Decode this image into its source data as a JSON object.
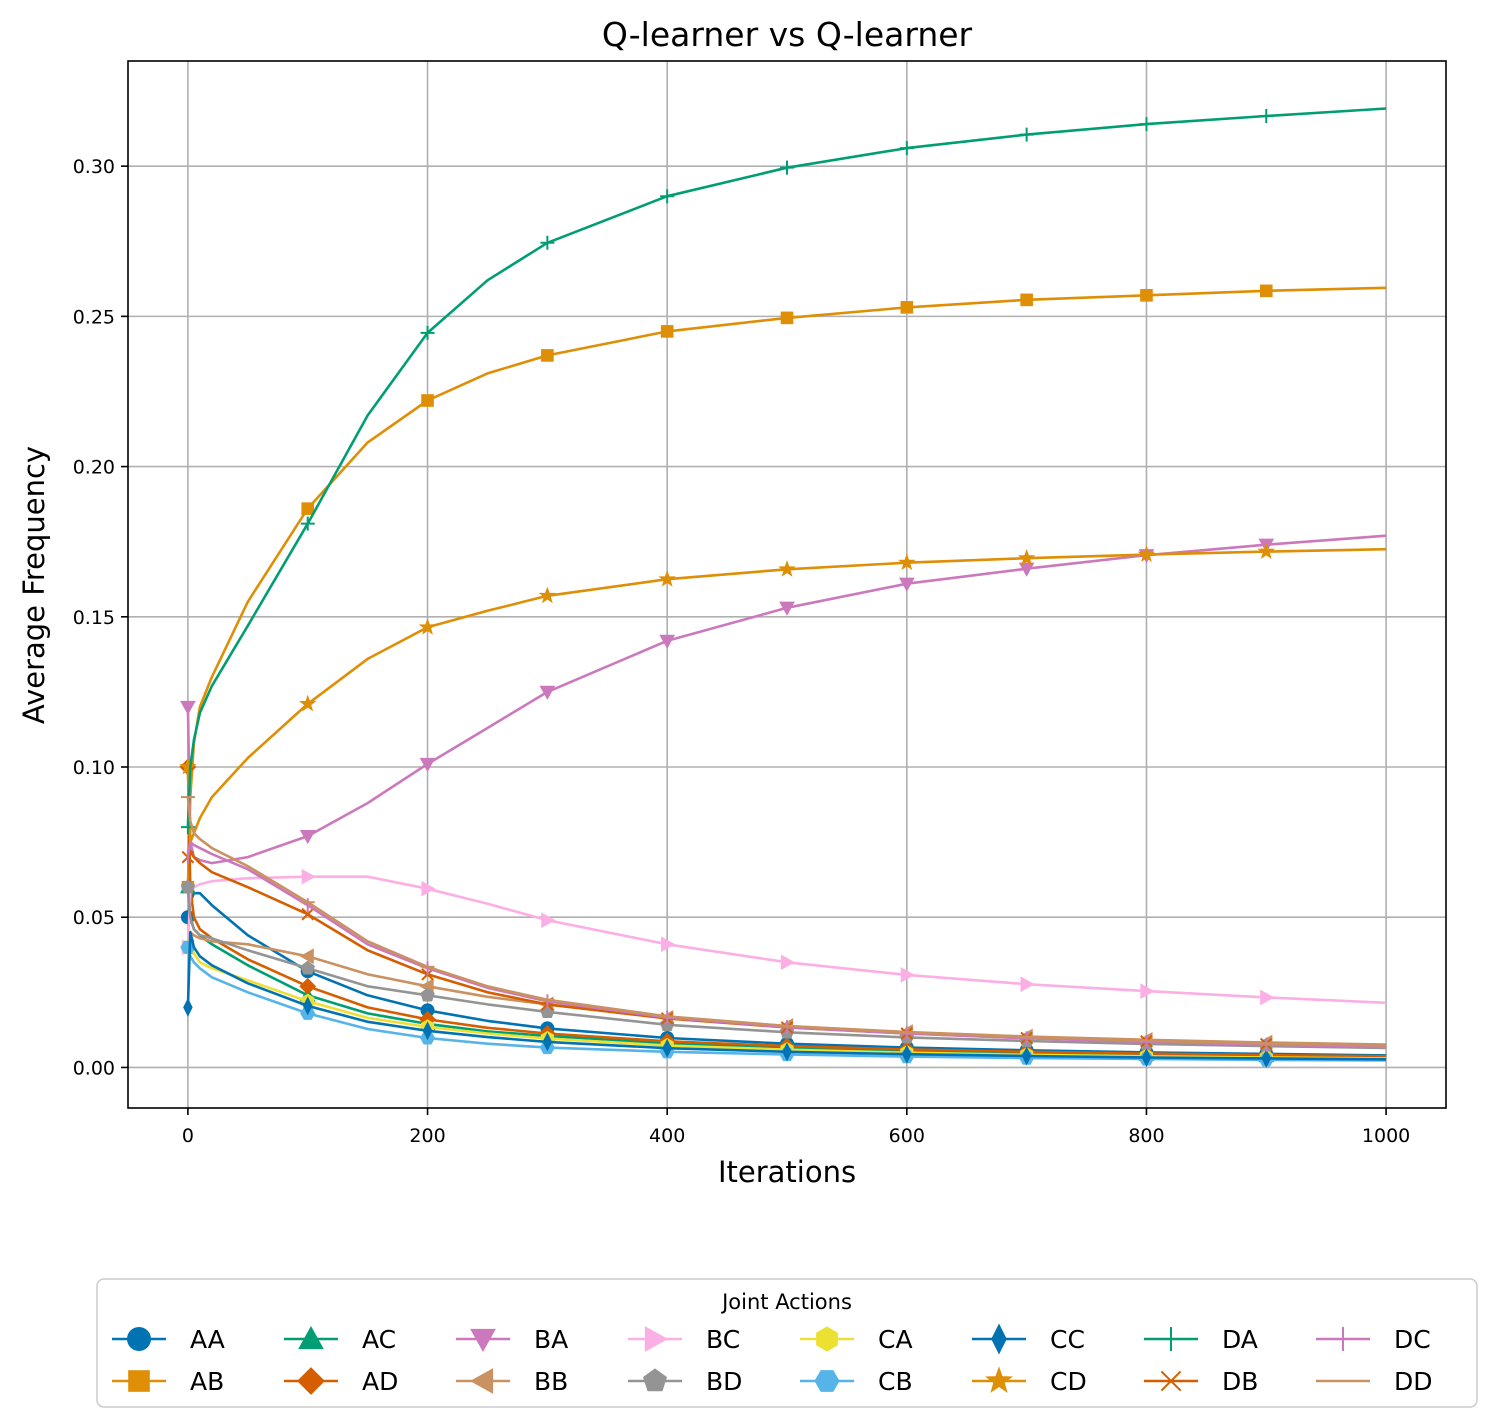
{
  "chart_data": {
    "type": "line",
    "title": "Q-learner vs Q-learner",
    "xlabel": "Iterations",
    "ylabel": "Average Frequency",
    "xlim": [
      -50,
      1050
    ],
    "ylim": [
      -0.0135,
      0.335
    ],
    "xticks": [
      0,
      200,
      400,
      600,
      800,
      1000
    ],
    "xtick_labels": [
      "0",
      "200",
      "400",
      "600",
      "800",
      "1000"
    ],
    "yticks": [
      0.0,
      0.05,
      0.1,
      0.15,
      0.2,
      0.25,
      0.3
    ],
    "ytick_labels": [
      "0.00",
      "0.05",
      "0.10",
      "0.15",
      "0.20",
      "0.25",
      "0.30"
    ],
    "grid": true,
    "legend": {
      "title": "Joint Actions",
      "placement": "bottom-center",
      "columns": 8
    },
    "x": [
      0,
      2,
      5,
      10,
      20,
      50,
      100,
      150,
      200,
      250,
      300,
      400,
      500,
      600,
      700,
      800,
      900,
      1000
    ],
    "series": [
      {
        "name": "AA",
        "color": "#0173b2",
        "marker": "circle",
        "values": [
          0.05,
          0.055,
          0.058,
          0.058,
          0.054,
          0.044,
          0.032,
          0.024,
          0.019,
          0.0155,
          0.013,
          0.0098,
          0.0079,
          0.0066,
          0.0057,
          0.005,
          0.0045,
          0.004
        ]
      },
      {
        "name": "AB",
        "color": "#de8f05",
        "marker": "square",
        "values": [
          0.06,
          0.09,
          0.108,
          0.12,
          0.13,
          0.155,
          0.186,
          0.208,
          0.222,
          0.231,
          0.237,
          0.245,
          0.2495,
          0.253,
          0.2555,
          0.257,
          0.2585,
          0.2595
        ]
      },
      {
        "name": "AC",
        "color": "#029e73",
        "marker": "triangle-up",
        "values": [
          0.06,
          0.05,
          0.046,
          0.044,
          0.041,
          0.034,
          0.024,
          0.018,
          0.0145,
          0.012,
          0.0105,
          0.008,
          0.0065,
          0.0055,
          0.0048,
          0.0042,
          0.0038,
          0.0034
        ]
      },
      {
        "name": "AD",
        "color": "#d55e00",
        "marker": "diamond",
        "values": [
          0.1,
          0.06,
          0.05,
          0.046,
          0.043,
          0.036,
          0.027,
          0.02,
          0.016,
          0.0132,
          0.0113,
          0.0087,
          0.0071,
          0.006,
          0.0052,
          0.0046,
          0.0041,
          0.0037
        ]
      },
      {
        "name": "BA",
        "color": "#cc78bc",
        "marker": "triangle-down",
        "values": [
          0.12,
          0.075,
          0.07,
          0.069,
          0.068,
          0.07,
          0.077,
          0.088,
          0.101,
          0.113,
          0.125,
          0.142,
          0.153,
          0.161,
          0.166,
          0.1705,
          0.174,
          0.177
        ]
      },
      {
        "name": "BB",
        "color": "#ca9161",
        "marker": "triangle-left",
        "values": [
          0.04,
          0.045,
          0.044,
          0.043,
          0.042,
          0.041,
          0.037,
          0.031,
          0.027,
          0.0235,
          0.021,
          0.0165,
          0.0138,
          0.0118,
          0.0103,
          0.0092,
          0.0083,
          0.0076
        ]
      },
      {
        "name": "BC",
        "color": "#fbafe4",
        "marker": "triangle-right",
        "values": [
          0.04,
          0.058,
          0.06,
          0.061,
          0.062,
          0.063,
          0.0635,
          0.0635,
          0.0595,
          0.0545,
          0.049,
          0.041,
          0.035,
          0.0308,
          0.0277,
          0.0254,
          0.0233,
          0.0215
        ]
      },
      {
        "name": "BD",
        "color": "#949494",
        "marker": "pentagon",
        "values": [
          0.06,
          0.05,
          0.046,
          0.044,
          0.043,
          0.039,
          0.033,
          0.027,
          0.024,
          0.021,
          0.0185,
          0.0142,
          0.0117,
          0.01,
          0.0088,
          0.0078,
          0.0071,
          0.0065
        ]
      },
      {
        "name": "CA",
        "color": "#ece133",
        "marker": "hexagon",
        "values": [
          0.04,
          0.04,
          0.038,
          0.035,
          0.033,
          0.029,
          0.022,
          0.0165,
          0.0135,
          0.0113,
          0.0096,
          0.0073,
          0.0059,
          0.0049,
          0.0042,
          0.0037,
          0.0033,
          0.003
        ]
      },
      {
        "name": "CB",
        "color": "#56b4e9",
        "marker": "hexagon-flat",
        "values": [
          0.04,
          0.037,
          0.035,
          0.033,
          0.03,
          0.025,
          0.018,
          0.0128,
          0.0098,
          0.0079,
          0.0066,
          0.0052,
          0.0043,
          0.0036,
          0.0031,
          0.0028,
          0.0025,
          0.0023
        ]
      },
      {
        "name": "CC",
        "color": "#0173b2",
        "marker": "thin-diamond",
        "values": [
          0.02,
          0.045,
          0.04,
          0.037,
          0.034,
          0.028,
          0.0205,
          0.0152,
          0.0122,
          0.0101,
          0.0085,
          0.0064,
          0.0052,
          0.0044,
          0.0038,
          0.0033,
          0.003,
          0.0027
        ]
      },
      {
        "name": "CD",
        "color": "#de8f05",
        "marker": "star",
        "values": [
          0.1,
          0.075,
          0.078,
          0.083,
          0.09,
          0.103,
          0.121,
          0.136,
          0.1465,
          0.152,
          0.157,
          0.1625,
          0.1658,
          0.168,
          0.1695,
          0.1707,
          0.1717,
          0.1725
        ]
      },
      {
        "name": "DA",
        "color": "#029e73",
        "marker": "plus",
        "values": [
          0.08,
          0.1,
          0.109,
          0.118,
          0.127,
          0.147,
          0.181,
          0.217,
          0.2445,
          0.262,
          0.2745,
          0.29,
          0.2995,
          0.306,
          0.3105,
          0.314,
          0.3167,
          0.3192
        ]
      },
      {
        "name": "DB",
        "color": "#d55e00",
        "marker": "x",
        "values": [
          0.07,
          0.072,
          0.07,
          0.068,
          0.065,
          0.06,
          0.051,
          0.039,
          0.031,
          0.025,
          0.021,
          0.0163,
          0.0133,
          0.0113,
          0.0098,
          0.0087,
          0.0078,
          0.0071
        ]
      },
      {
        "name": "DC",
        "color": "#cc78bc",
        "marker": "vline",
        "values": [
          0.07,
          0.075,
          0.074,
          0.073,
          0.071,
          0.066,
          0.054,
          0.041,
          0.033,
          0.0265,
          0.022,
          0.0166,
          0.0134,
          0.0113,
          0.0097,
          0.0085,
          0.0076,
          0.0068
        ]
      },
      {
        "name": "DD",
        "color": "#ca9161",
        "marker": "hline",
        "values": [
          0.09,
          0.082,
          0.078,
          0.076,
          0.073,
          0.067,
          0.055,
          0.042,
          0.0335,
          0.027,
          0.0225,
          0.017,
          0.0138,
          0.0117,
          0.0101,
          0.0089,
          0.008,
          0.0073
        ]
      }
    ]
  }
}
